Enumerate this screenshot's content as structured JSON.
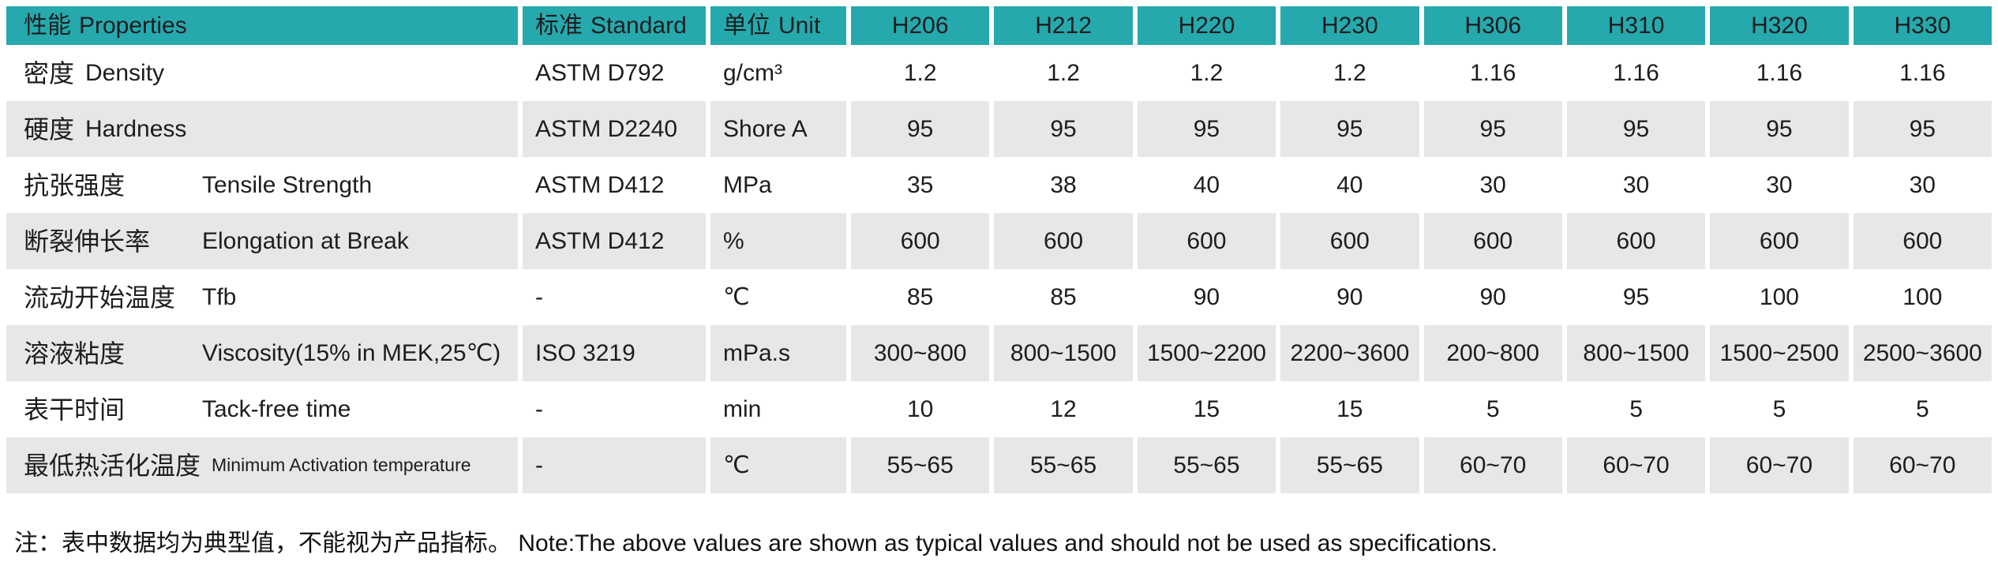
{
  "table": {
    "header": {
      "properties_zh": "性能",
      "properties_en": "Properties",
      "standard_zh": "标准",
      "standard_en": "Standard",
      "unit_zh": "单位",
      "unit_en": "Unit",
      "products": [
        "H206",
        "H212",
        "H220",
        "H230",
        "H306",
        "H310",
        "H320",
        "H330"
      ]
    },
    "rows": [
      {
        "zh": "密度",
        "en": "Density",
        "standard": "ASTM D792",
        "unit": "g/cm³",
        "values": [
          "1.2",
          "1.2",
          "1.2",
          "1.2",
          "1.16",
          "1.16",
          "1.16",
          "1.16"
        ]
      },
      {
        "zh": "硬度",
        "en": "Hardness",
        "standard": "ASTM D2240",
        "unit": "Shore A",
        "values": [
          "95",
          "95",
          "95",
          "95",
          "95",
          "95",
          "95",
          "95"
        ]
      },
      {
        "zh": "抗张强度",
        "en": "Tensile Strength",
        "standard": "ASTM D412",
        "unit": "MPa",
        "values": [
          "35",
          "38",
          "40",
          "40",
          "30",
          "30",
          "30",
          "30"
        ]
      },
      {
        "zh": "断裂伸长率",
        "en": "Elongation at Break",
        "standard": "ASTM D412",
        "unit": "%",
        "values": [
          "600",
          "600",
          "600",
          "600",
          "600",
          "600",
          "600",
          "600"
        ]
      },
      {
        "zh": "流动开始温度",
        "en": "Tfb",
        "standard": "-",
        "unit": "℃",
        "values": [
          "85",
          "85",
          "90",
          "90",
          "90",
          "95",
          "100",
          "100"
        ]
      },
      {
        "zh": "溶液粘度",
        "en": "Viscosity(15% in MEK,25℃)",
        "standard": "ISO 3219",
        "unit": "mPa.s",
        "values": [
          "300~800",
          "800~1500",
          "1500~2200",
          "2200~3600",
          "200~800",
          "800~1500",
          "1500~2500",
          "2500~3600"
        ]
      },
      {
        "zh": "表干时间",
        "en": "Tack-free time",
        "standard": "-",
        "unit": "min",
        "values": [
          "10",
          "12",
          "15",
          "15",
          "5",
          "5",
          "5",
          "5"
        ]
      },
      {
        "zh": "最低热活化温度",
        "en": "Minimum Activation temperature",
        "standard": "-",
        "unit": "℃",
        "values": [
          "55~65",
          "55~65",
          "55~65",
          "55~65",
          "60~70",
          "60~70",
          "60~70",
          "60~70"
        ]
      }
    ]
  },
  "note": "注：表中数据均为典型值，不能视为产品指标。 Note:The above values are shown as typical values and should not be used as specifications.",
  "colors": {
    "header_bg": "#26A9AD",
    "row_alt_bg": "#E7E7E9",
    "text": "#1D1D1F"
  }
}
